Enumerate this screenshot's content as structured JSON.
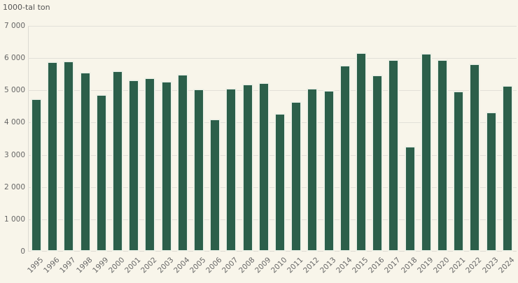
{
  "chart_data": {
    "type": "bar",
    "title": "",
    "xlabel": "",
    "ylabel": "1000-tal ton",
    "ylim": [
      0,
      7000
    ],
    "yticks": [
      0,
      1000,
      2000,
      3000,
      4000,
      5000,
      6000,
      7000
    ],
    "ytick_labels": [
      "0",
      "1 000",
      "2 000",
      "3 000",
      "4 000",
      "5 000",
      "6 000",
      "7 000"
    ],
    "grid": true,
    "legend": null,
    "bar_color": "#2c5f4a",
    "background": "#f8f5ea",
    "categories": [
      "1995",
      "1996",
      "1997",
      "1998",
      "1999",
      "2000",
      "2001",
      "2002",
      "2003",
      "2004",
      "2005",
      "2006",
      "2007",
      "2008",
      "2009",
      "2010",
      "2011",
      "2012",
      "2013",
      "2014",
      "2015",
      "2016",
      "2017",
      "2018",
      "2019",
      "2020",
      "2021",
      "2022",
      "2023",
      "2024"
    ],
    "values": [
      4740,
      5890,
      5925,
      5565,
      4885,
      5615,
      5340,
      5405,
      5290,
      5510,
      5055,
      4125,
      5075,
      5200,
      5255,
      4295,
      4650,
      5080,
      5000,
      5785,
      6180,
      5485,
      5965,
      3265,
      6160,
      5965,
      4985,
      5830,
      4335,
      5160
    ]
  },
  "labels": {
    "unit": "1000-tal ton"
  }
}
